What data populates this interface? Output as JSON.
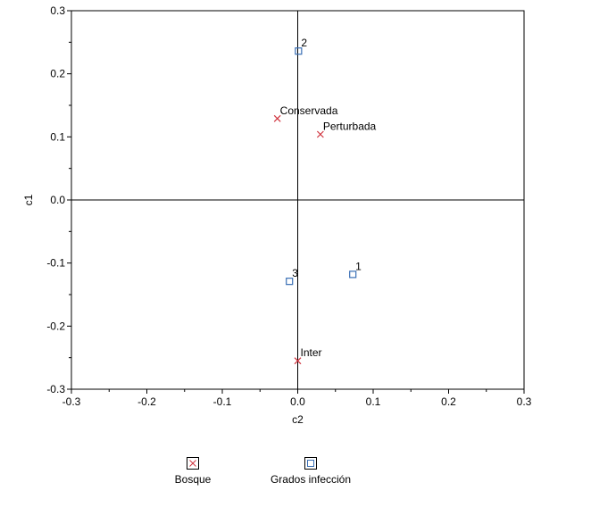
{
  "chart_data": {
    "type": "scatter",
    "xlabel": "c2",
    "ylabel": "c1",
    "xlim": [
      -0.3,
      0.3
    ],
    "ylim": [
      -0.3,
      0.3
    ],
    "x_ticks": [
      "-0.3",
      "-0.2",
      "-0.1",
      "0.0",
      "0.1",
      "0.2",
      "0.3"
    ],
    "y_ticks": [
      "0.3",
      "0.2",
      "0.1",
      "0.0",
      "-0.1",
      "-0.2",
      "-0.3"
    ],
    "reference_lines": {
      "x": 0,
      "y": 0
    },
    "series": [
      {
        "name": "Bosque",
        "marker": "x",
        "color": "#d0343f",
        "points": [
          {
            "label": "Conservada",
            "x": -0.027,
            "y": 0.129
          },
          {
            "label": "Perturbada",
            "x": 0.03,
            "y": 0.104
          },
          {
            "label": "Inter",
            "x": 0.0,
            "y": -0.255
          }
        ]
      },
      {
        "name": "Grados infección",
        "marker": "square",
        "color": "#3a6fb5",
        "points": [
          {
            "label": "2",
            "x": 0.001,
            "y": 0.236
          },
          {
            "label": "1",
            "x": 0.073,
            "y": -0.118
          },
          {
            "label": "3",
            "x": -0.011,
            "y": -0.129
          }
        ]
      }
    ],
    "legend": {
      "placement": "bottom"
    }
  }
}
